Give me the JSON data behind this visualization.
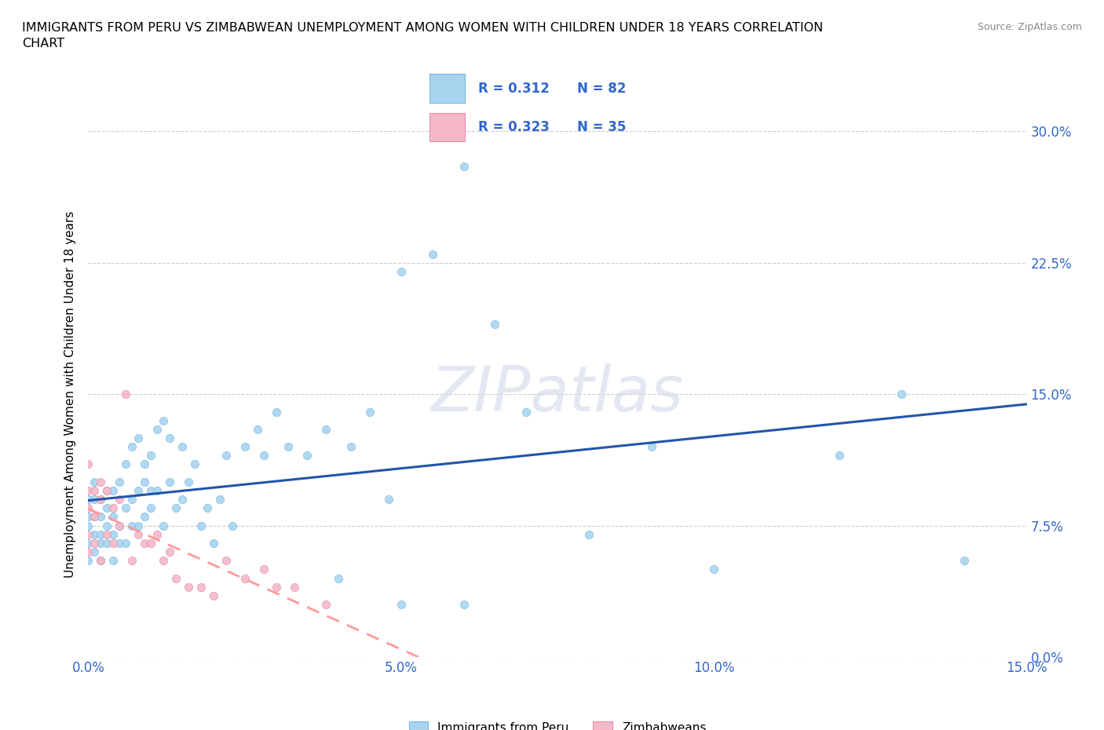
{
  "title": "IMMIGRANTS FROM PERU VS ZIMBABWEAN UNEMPLOYMENT AMONG WOMEN WITH CHILDREN UNDER 18 YEARS CORRELATION\nCHART",
  "source": "Source: ZipAtlas.com",
  "ylabel": "Unemployment Among Women with Children Under 18 years",
  "xlim": [
    0.0,
    0.15
  ],
  "ylim": [
    0.0,
    0.3
  ],
  "xtick_vals": [
    0.0,
    0.05,
    0.1,
    0.15
  ],
  "ytick_vals": [
    0.0,
    0.075,
    0.15,
    0.225,
    0.3
  ],
  "peru_R": 0.312,
  "peru_N": 82,
  "zimb_R": 0.323,
  "zimb_N": 35,
  "peru_color": "#a8d4f0",
  "peru_edge": "#7ab8e0",
  "zimb_color": "#f5b8c8",
  "zimb_edge": "#e090a8",
  "trend_peru_color": "#2255AA",
  "trend_zimb_color": "#FF9999",
  "watermark": "ZIPatlas",
  "grid_color": "#cccccc",
  "bg_color": "#ffffff",
  "tick_color": "#3366CC",
  "legend_color": "#3366CC",
  "peru_x": [
    0.0,
    0.0,
    0.0,
    0.0,
    0.0,
    0.001,
    0.001,
    0.001,
    0.001,
    0.001,
    0.002,
    0.002,
    0.002,
    0.002,
    0.002,
    0.003,
    0.003,
    0.003,
    0.003,
    0.004,
    0.004,
    0.004,
    0.004,
    0.005,
    0.005,
    0.005,
    0.006,
    0.006,
    0.006,
    0.007,
    0.007,
    0.007,
    0.008,
    0.008,
    0.008,
    0.009,
    0.009,
    0.009,
    0.01,
    0.01,
    0.01,
    0.011,
    0.011,
    0.012,
    0.012,
    0.013,
    0.013,
    0.014,
    0.015,
    0.015,
    0.016,
    0.017,
    0.018,
    0.019,
    0.02,
    0.021,
    0.022,
    0.023,
    0.025,
    0.027,
    0.028,
    0.03,
    0.032,
    0.035,
    0.038,
    0.04,
    0.042,
    0.045,
    0.048,
    0.05,
    0.055,
    0.06,
    0.065,
    0.07,
    0.08,
    0.09,
    0.1,
    0.12,
    0.13,
    0.14,
    0.05,
    0.06
  ],
  "peru_y": [
    0.055,
    0.065,
    0.075,
    0.08,
    0.09,
    0.06,
    0.07,
    0.08,
    0.09,
    0.1,
    0.055,
    0.065,
    0.07,
    0.08,
    0.09,
    0.065,
    0.075,
    0.085,
    0.095,
    0.055,
    0.07,
    0.08,
    0.095,
    0.065,
    0.075,
    0.1,
    0.065,
    0.085,
    0.11,
    0.075,
    0.09,
    0.12,
    0.075,
    0.095,
    0.125,
    0.08,
    0.1,
    0.11,
    0.085,
    0.095,
    0.115,
    0.095,
    0.13,
    0.075,
    0.135,
    0.1,
    0.125,
    0.085,
    0.09,
    0.12,
    0.1,
    0.11,
    0.075,
    0.085,
    0.065,
    0.09,
    0.115,
    0.075,
    0.12,
    0.13,
    0.115,
    0.14,
    0.12,
    0.115,
    0.13,
    0.045,
    0.12,
    0.14,
    0.09,
    0.22,
    0.23,
    0.28,
    0.19,
    0.14,
    0.07,
    0.12,
    0.05,
    0.115,
    0.15,
    0.055,
    0.03,
    0.03
  ],
  "zimb_x": [
    0.0,
    0.0,
    0.0,
    0.0,
    0.0,
    0.001,
    0.001,
    0.001,
    0.002,
    0.002,
    0.002,
    0.003,
    0.003,
    0.004,
    0.004,
    0.005,
    0.005,
    0.006,
    0.007,
    0.008,
    0.009,
    0.01,
    0.011,
    0.012,
    0.013,
    0.014,
    0.016,
    0.018,
    0.02,
    0.022,
    0.025,
    0.028,
    0.03,
    0.033,
    0.038
  ],
  "zimb_y": [
    0.06,
    0.07,
    0.085,
    0.095,
    0.11,
    0.065,
    0.08,
    0.095,
    0.055,
    0.09,
    0.1,
    0.07,
    0.095,
    0.065,
    0.085,
    0.075,
    0.09,
    0.15,
    0.055,
    0.07,
    0.065,
    0.065,
    0.07,
    0.055,
    0.06,
    0.045,
    0.04,
    0.04,
    0.035,
    0.055,
    0.045,
    0.05,
    0.04,
    0.04,
    0.03
  ]
}
